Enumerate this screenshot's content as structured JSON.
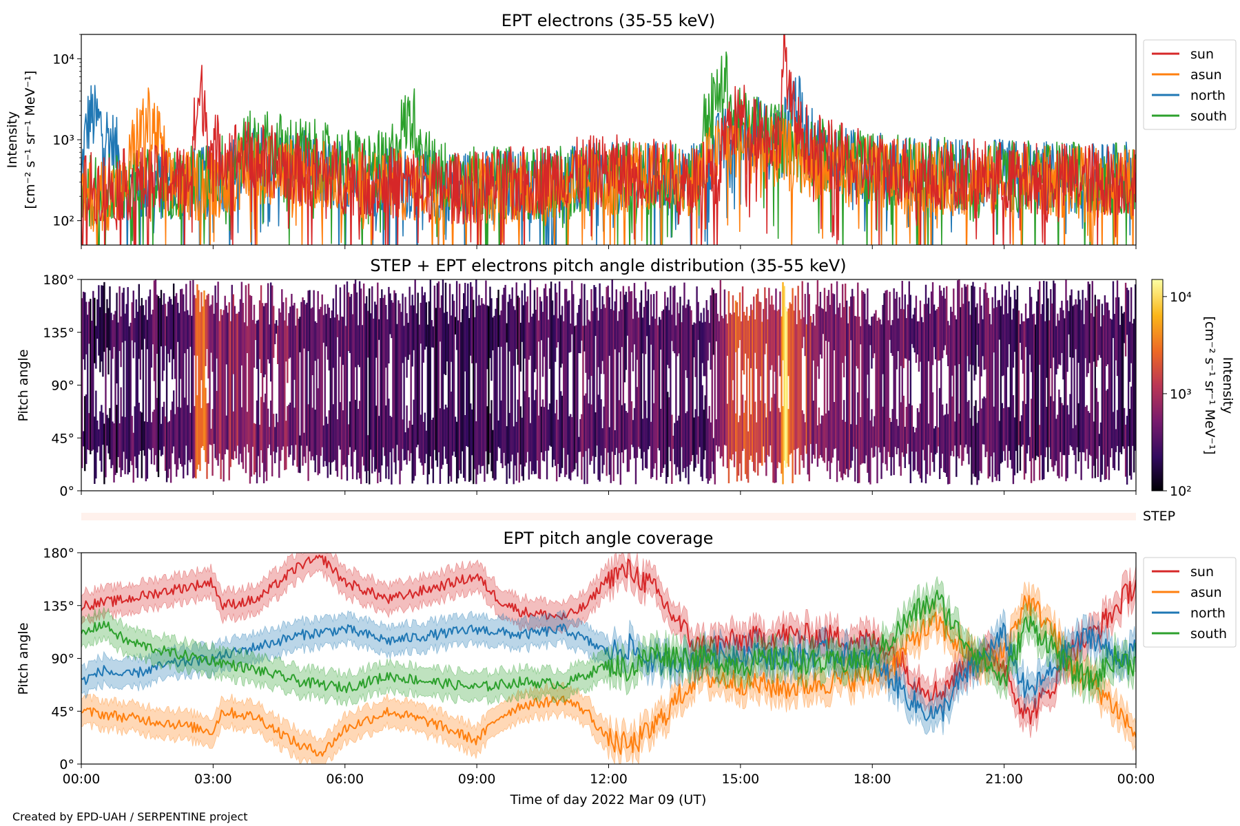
{
  "colors": {
    "sun": "#d62728",
    "asun": "#ff7f0e",
    "north": "#1f77b4",
    "south": "#2ca02c",
    "step_band": "#fff1ec"
  },
  "footer": {
    "credit": "Created by EPD-UAH / SERPENTINE project"
  },
  "chart_data": [
    {
      "type": "line",
      "title": "EPT electrons (35-55 keV)",
      "ylabel_line1": "Intensity",
      "ylabel_line2": "[cm⁻² s⁻¹ sr⁻¹ MeV⁻¹]",
      "yscale": "log",
      "ylim": [
        50,
        20000
      ],
      "yticks": [
        {
          "value": 100,
          "label": "10²"
        },
        {
          "value": 1000,
          "label": "10³"
        },
        {
          "value": 10000,
          "label": "10⁴"
        }
      ],
      "xlim": [
        0,
        24
      ],
      "legend": {
        "placement": "outside-right-top",
        "entries": [
          "sun",
          "asun",
          "north",
          "south"
        ]
      },
      "series": [
        {
          "name": "sun",
          "x": [
            0,
            0.5,
            1,
            1.5,
            2,
            2.5,
            2.75,
            2.9,
            3.2,
            3.5,
            4,
            4.5,
            5,
            5.5,
            6,
            6.5,
            7,
            7.5,
            8,
            8.5,
            9,
            9.5,
            10,
            10.5,
            11,
            11.5,
            12,
            12.5,
            13,
            13.5,
            14,
            14.5,
            14.7,
            15,
            15.3,
            15.6,
            15.9,
            16.0,
            16.1,
            16.3,
            16.6,
            17,
            17.5,
            18,
            18.5,
            19,
            19.5,
            20,
            20.5,
            21,
            21.5,
            22,
            22.5,
            23,
            23.5,
            24
          ],
          "values": [
            250,
            260,
            280,
            300,
            320,
            340,
            3500,
            900,
            700,
            650,
            600,
            500,
            420,
            400,
            330,
            320,
            300,
            280,
            260,
            250,
            260,
            280,
            300,
            330,
            360,
            400,
            420,
            400,
            380,
            360,
            340,
            330,
            1400,
            1900,
            1700,
            1200,
            900,
            13000,
            3000,
            1300,
            900,
            650,
            520,
            460,
            420,
            400,
            380,
            370,
            360,
            350,
            340,
            340,
            330,
            330,
            320,
            320
          ]
        },
        {
          "name": "asun",
          "x": [
            0,
            1,
            1.5,
            2,
            3,
            4,
            5,
            6,
            7,
            8,
            9,
            10,
            11,
            12,
            13,
            14,
            14.7,
            15,
            15.5,
            16,
            16.5,
            17,
            18,
            19,
            20,
            21,
            22,
            23,
            24
          ],
          "values": [
            200,
            220,
            1700,
            260,
            280,
            450,
            400,
            300,
            280,
            260,
            250,
            260,
            280,
            320,
            340,
            320,
            800,
            900,
            700,
            650,
            550,
            450,
            380,
            340,
            320,
            300,
            300,
            290,
            280
          ]
        },
        {
          "name": "north",
          "x": [
            0,
            0.2,
            1,
            2,
            3,
            4,
            5,
            6,
            7,
            8,
            9,
            10,
            11,
            12,
            13,
            14,
            14.7,
            15,
            15.5,
            16,
            16.1,
            16.5,
            17,
            18,
            19,
            20,
            21,
            22,
            23,
            24
          ],
          "values": [
            220,
            2000,
            250,
            280,
            300,
            550,
            480,
            340,
            300,
            280,
            270,
            280,
            300,
            330,
            350,
            340,
            1000,
            1400,
            1200,
            900,
            4000,
            1000,
            550,
            450,
            400,
            380,
            360,
            350,
            340,
            330
          ]
        },
        {
          "name": "south",
          "x": [
            0,
            1,
            2,
            3,
            4,
            5,
            6,
            7,
            7.5,
            8,
            9,
            10,
            11,
            12,
            13,
            14,
            14.7,
            14.8,
            15,
            15.5,
            16,
            16.5,
            17,
            18,
            19,
            20,
            21,
            22,
            23,
            24
          ],
          "values": [
            230,
            260,
            300,
            320,
            900,
            700,
            500,
            450,
            1900,
            380,
            300,
            290,
            300,
            330,
            340,
            330,
            4800,
            2000,
            1500,
            1300,
            1000,
            800,
            600,
            450,
            400,
            380,
            360,
            350,
            340,
            330
          ]
        }
      ]
    },
    {
      "type": "heatmap",
      "title": "STEP + EPT electrons pitch angle distribution (35-55 keV)",
      "ylabel": "Pitch angle",
      "yticks": [
        "0°",
        "45°",
        "90°",
        "135°",
        "180°"
      ],
      "ylim": [
        0,
        180
      ],
      "xlim": [
        0,
        24
      ],
      "colorbar": {
        "label_line1": "Intensity",
        "label_line2": "[cm⁻² s⁻¹ sr⁻¹ MeV⁻¹]",
        "scale": "log",
        "range": [
          100,
          15000
        ],
        "ticks": [
          {
            "value": 100,
            "label": "10²"
          },
          {
            "value": 1000,
            "label": "10³"
          },
          {
            "value": 10000,
            "label": "10⁴"
          }
        ],
        "colormap": [
          "#000004",
          "#320a5e",
          "#781c6d",
          "#bb3754",
          "#ed6925",
          "#fbb61a",
          "#fcffa4"
        ]
      }
    },
    {
      "type": "bar",
      "label": "STEP"
    },
    {
      "type": "line",
      "title": "EPT pitch angle coverage",
      "ylabel": "Pitch angle",
      "yticks": [
        "0°",
        "45°",
        "90°",
        "135°",
        "180°"
      ],
      "ylim": [
        0,
        180
      ],
      "xlim": [
        0,
        24
      ],
      "xlabel": "Time of day 2022 Mar 09 (UT)",
      "xticks": [
        "00:00",
        "03:00",
        "06:00",
        "09:00",
        "12:00",
        "15:00",
        "18:00",
        "21:00",
        "00:00"
      ],
      "legend": {
        "placement": "outside-right-top",
        "entries": [
          "sun",
          "asun",
          "north",
          "south"
        ]
      },
      "series": [
        {
          "name": "sun",
          "x": [
            0,
            1,
            2,
            3,
            3.2,
            4,
            5,
            5.5,
            6,
            7,
            8,
            9,
            9.5,
            10,
            11,
            11.5,
            12,
            12.5,
            13,
            14,
            15,
            16,
            17,
            18,
            18.5,
            19,
            19.5,
            20,
            20.5,
            21,
            21.5,
            22,
            22.5,
            23,
            23.5,
            24
          ],
          "values": [
            135,
            140,
            148,
            155,
            135,
            140,
            170,
            175,
            155,
            140,
            150,
            160,
            140,
            130,
            125,
            135,
            160,
            165,
            150,
            100,
            105,
            110,
            108,
            105,
            95,
            70,
            60,
            80,
            95,
            85,
            40,
            60,
            95,
            110,
            130,
            155
          ]
        },
        {
          "name": "asun",
          "x": [
            0,
            1,
            2,
            3,
            3.2,
            4,
            5,
            5.5,
            6,
            7,
            8,
            9,
            9.5,
            10,
            11,
            11.5,
            12,
            12.5,
            13,
            14,
            15,
            16,
            17,
            18,
            18.5,
            19,
            19.5,
            20,
            20.5,
            21,
            21.5,
            22,
            22.5,
            23,
            23.5,
            24
          ],
          "values": [
            45,
            40,
            35,
            28,
            45,
            40,
            15,
            10,
            30,
            45,
            35,
            20,
            40,
            50,
            55,
            45,
            20,
            15,
            30,
            75,
            70,
            65,
            70,
            75,
            85,
            110,
            120,
            100,
            85,
            95,
            140,
            120,
            85,
            70,
            50,
            25
          ]
        },
        {
          "name": "north",
          "x": [
            0,
            0.5,
            1,
            2,
            3,
            4,
            5,
            6,
            7,
            8,
            9,
            10,
            11,
            12,
            12.5,
            13,
            14,
            15,
            16,
            17,
            18,
            18.5,
            19,
            19.5,
            20,
            20.5,
            21,
            21.5,
            22,
            22.5,
            23,
            23.5,
            24
          ],
          "values": [
            70,
            80,
            75,
            85,
            90,
            100,
            110,
            115,
            105,
            110,
            115,
            110,
            115,
            95,
            100,
            85,
            90,
            95,
            90,
            95,
            90,
            70,
            50,
            40,
            70,
            90,
            110,
            60,
            75,
            100,
            110,
            90,
            95
          ]
        },
        {
          "name": "south",
          "x": [
            0,
            0.5,
            1,
            2,
            3,
            4,
            5,
            6,
            7,
            8,
            9,
            10,
            11,
            12,
            12.5,
            13,
            14,
            15,
            16,
            17,
            18,
            18.5,
            19,
            19.5,
            20,
            20.5,
            21,
            21.5,
            22,
            22.5,
            23,
            23.5,
            24
          ],
          "values": [
            110,
            120,
            105,
            95,
            88,
            80,
            70,
            65,
            75,
            70,
            65,
            70,
            68,
            85,
            80,
            95,
            90,
            85,
            90,
            85,
            90,
            110,
            130,
            140,
            110,
            90,
            70,
            120,
            105,
            80,
            70,
            90,
            85
          ]
        }
      ]
    }
  ]
}
